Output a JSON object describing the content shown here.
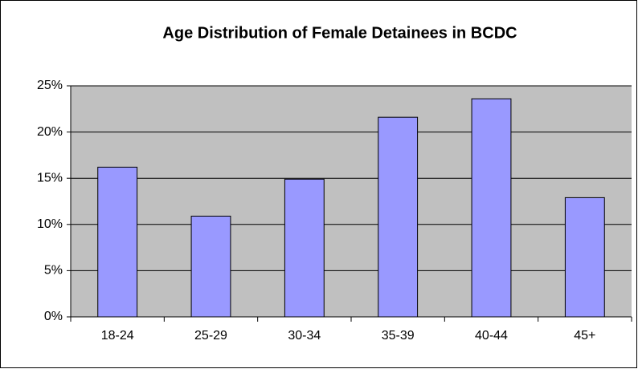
{
  "chart_data": {
    "type": "bar",
    "title": "Age Distribution of Female Detainees in BCDC",
    "categories": [
      "18-24",
      "25-29",
      "30-34",
      "35-39",
      "40-44",
      "45+"
    ],
    "values": [
      16.2,
      10.9,
      14.9,
      21.6,
      23.6,
      12.9
    ],
    "color": "#9999ff",
    "plot_background": "#c0c0c0",
    "ylim": [
      0,
      25
    ],
    "yticks": [
      {
        "value": 0,
        "label": "0%"
      },
      {
        "value": 5,
        "label": "5%"
      },
      {
        "value": 10,
        "label": "10%"
      },
      {
        "value": 15,
        "label": "15%"
      },
      {
        "value": 20,
        "label": "20%"
      },
      {
        "value": 25,
        "label": "25%"
      }
    ],
    "grid": true
  }
}
